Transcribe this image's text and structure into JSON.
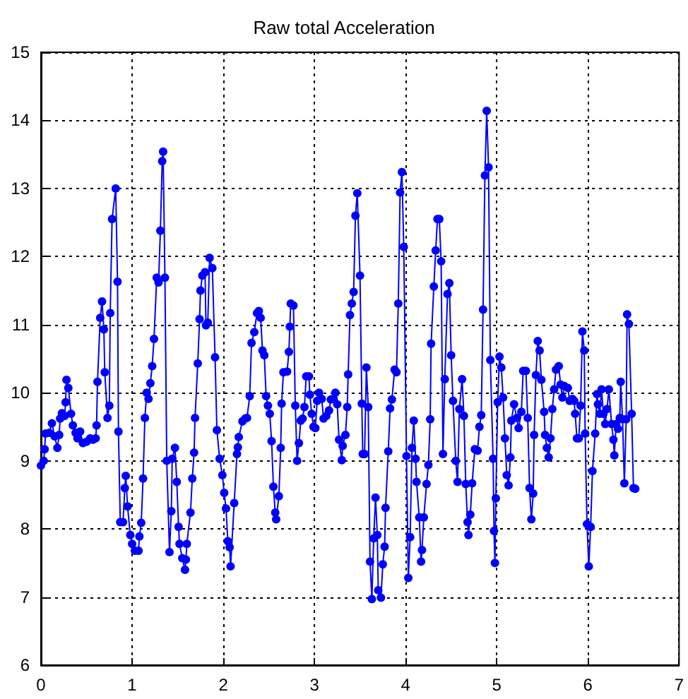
{
  "chart_data": {
    "type": "line",
    "title": "Raw total Acceleration",
    "xlim": [
      0,
      7
    ],
    "xticks": [
      0,
      1,
      2,
      3,
      4,
      5,
      6,
      7
    ],
    "ylim": [
      6,
      15
    ],
    "yticks": [
      6,
      7,
      8,
      9,
      10,
      11,
      12,
      13,
      14,
      15
    ],
    "grid": true,
    "marker": "circle",
    "line_style": "solid",
    "series": [
      {
        "color": "#0000ff",
        "x": [
          0,
          0.03,
          0.04,
          0.05,
          0.09,
          0.12,
          0.15,
          0.18,
          0.2,
          0.21,
          0.23,
          0.26,
          0.27,
          0.28,
          0.3,
          0.33,
          0.35,
          0.38,
          0.4,
          0.43,
          0.46,
          0.5,
          0.54,
          0.57,
          0.6,
          0.61,
          0.62,
          0.65,
          0.67,
          0.69,
          0.7,
          0.73,
          0.75,
          0.76,
          0.78,
          0.82,
          0.84,
          0.85,
          0.87,
          0.9,
          0.92,
          0.93,
          0.95,
          0.98,
          1.0,
          1.03,
          1.07,
          1.08,
          1.1,
          1.12,
          1.14,
          1.16,
          1.18,
          1.2,
          1.22,
          1.24,
          1.27,
          1.29,
          1.31,
          1.33,
          1.34,
          1.36,
          1.38,
          1.41,
          1.43,
          1.44,
          1.47,
          1.49,
          1.51,
          1.52,
          1.55,
          1.58,
          1.59,
          1.6,
          1.64,
          1.66,
          1.68,
          1.69,
          1.72,
          1.74,
          1.75,
          1.77,
          1.8,
          1.81,
          1.83,
          1.85,
          1.88,
          1.91,
          1.93,
          1.96,
          1.99,
          2.01,
          2.03,
          2.05,
          2.07,
          2.08,
          2.12,
          2.15,
          2.16,
          2.17,
          2.21,
          2.24,
          2.26,
          2.29,
          2.31,
          2.34,
          2.37,
          2.39,
          2.41,
          2.43,
          2.45,
          2.47,
          2.49,
          2.51,
          2.53,
          2.55,
          2.57,
          2.58,
          2.61,
          2.63,
          2.64,
          2.66,
          2.7,
          2.72,
          2.73,
          2.74,
          2.77,
          2.79,
          2.81,
          2.83,
          2.85,
          2.87,
          2.89,
          2.91,
          2.94,
          2.95,
          2.97,
          2.99,
          3.01,
          3.03,
          3.05,
          3.08,
          3.1,
          3.13,
          3.16,
          3.18,
          3.21,
          3.23,
          3.25,
          3.27,
          3.3,
          3.31,
          3.34,
          3.36,
          3.37,
          3.39,
          3.41,
          3.43,
          3.45,
          3.47,
          3.5,
          3.52,
          3.53,
          3.55,
          3.57,
          3.59,
          3.61,
          3.63,
          3.65,
          3.67,
          3.69,
          3.7,
          3.73,
          3.75,
          3.77,
          3.78,
          3.81,
          3.83,
          3.85,
          3.88,
          3.9,
          3.92,
          3.94,
          3.96,
          3.98,
          4.01,
          4.03,
          4.05,
          4.07,
          4.09,
          4.11,
          4.12,
          4.15,
          4.17,
          4.18,
          4.2,
          4.23,
          4.25,
          4.27,
          4.28,
          4.31,
          4.33,
          4.35,
          4.37,
          4.39,
          4.41,
          4.43,
          4.46,
          4.48,
          4.5,
          4.52,
          4.55,
          4.57,
          4.59,
          4.62,
          4.64,
          4.66,
          4.68,
          4.69,
          4.71,
          4.73,
          4.76,
          4.79,
          4.81,
          4.83,
          4.85,
          4.87,
          4.89,
          4.91,
          4.93,
          4.96,
          4.97,
          4.98,
          4.99,
          5.01,
          5.03,
          5.05,
          5.07,
          5.09,
          5.11,
          5.13,
          5.15,
          5.16,
          5.19,
          5.22,
          5.24,
          5.27,
          5.29,
          5.32,
          5.34,
          5.36,
          5.38,
          5.4,
          5.41,
          5.43,
          5.45,
          5.47,
          5.49,
          5.52,
          5.53,
          5.55,
          5.57,
          5.59,
          5.61,
          5.63,
          5.65,
          5.68,
          5.7,
          5.72,
          5.74,
          5.78,
          5.8,
          5.83,
          5.85,
          5.86,
          5.88,
          5.9,
          5.92,
          5.94,
          5.96,
          5.97,
          5.99,
          6.01,
          6.03,
          6.05,
          6.08,
          6.1,
          6.11,
          6.13,
          6.15,
          6.17,
          6.19,
          6.21,
          6.23,
          6.26,
          6.28,
          6.29,
          6.31,
          6.33,
          6.35,
          6.36,
          6.38,
          6.4,
          6.42,
          6.43,
          6.45,
          6.48,
          6.5,
          6.52
        ],
        "values": [
          8.93,
          9.0,
          9.17,
          9.4,
          9.41,
          9.55,
          9.36,
          9.19,
          9.38,
          9.62,
          9.7,
          9.66,
          9.86,
          10.19,
          10.07,
          9.69,
          9.52,
          9.41,
          9.33,
          9.43,
          9.26,
          9.28,
          9.33,
          9.31,
          9.33,
          9.52,
          10.16,
          11.1,
          11.34,
          10.93,
          10.3,
          9.63,
          9.81,
          11.17,
          12.55,
          13.0,
          11.63,
          9.43,
          8.1,
          8.1,
          8.6,
          8.78,
          8.33,
          7.91,
          7.78,
          7.68,
          7.68,
          7.89,
          8.09,
          8.74,
          9.63,
          10.0,
          9.91,
          10.14,
          10.39,
          10.79,
          11.69,
          11.62,
          12.38,
          13.4,
          13.54,
          11.69,
          9.0,
          7.66,
          8.26,
          9.03,
          9.19,
          8.69,
          8.03,
          7.78,
          7.57,
          7.4,
          7.55,
          7.78,
          8.24,
          8.74,
          9.12,
          9.63,
          10.43,
          11.08,
          11.5,
          11.72,
          11.77,
          10.99,
          11.03,
          11.98,
          11.83,
          10.52,
          9.45,
          9.03,
          8.79,
          8.53,
          8.3,
          7.82,
          7.73,
          7.45,
          8.38,
          9.1,
          9.2,
          9.35,
          9.58,
          9.62,
          9.63,
          9.95,
          10.73,
          10.89,
          11.17,
          11.2,
          11.1,
          10.62,
          10.55,
          9.95,
          9.81,
          9.69,
          9.29,
          8.62,
          8.24,
          8.14,
          8.48,
          9.19,
          9.84,
          10.3,
          10.31,
          10.6,
          10.97,
          11.31,
          11.28,
          9.81,
          9.0,
          9.26,
          9.59,
          9.62,
          9.79,
          10.24,
          10.24,
          9.97,
          9.69,
          9.5,
          9.48,
          9.88,
          10.0,
          9.91,
          9.62,
          9.66,
          9.74,
          9.9,
          9.91,
          10.0,
          9.83,
          9.31,
          9.01,
          9.22,
          9.38,
          9.79,
          10.27,
          11.14,
          11.31,
          11.48,
          12.6,
          12.93,
          11.72,
          9.84,
          9.1,
          9.1,
          10.37,
          9.79,
          7.52,
          6.97,
          7.86,
          8.46,
          7.91,
          7.1,
          6.99,
          7.48,
          7.74,
          8.31,
          9.14,
          9.77,
          9.9,
          10.34,
          10.3,
          11.31,
          12.94,
          13.24,
          12.14,
          9.07,
          7.28,
          7.88,
          9.19,
          9.59,
          9.03,
          8.69,
          8.17,
          7.52,
          7.69,
          8.17,
          8.66,
          8.94,
          9.61,
          10.72,
          11.56,
          12.09,
          12.55,
          12.55,
          11.93,
          9.1,
          10.2,
          11.45,
          11.61,
          10.55,
          9.88,
          9.0,
          8.69,
          9.76,
          10.2,
          9.66,
          8.66,
          8.1,
          7.91,
          8.21,
          8.67,
          9.17,
          9.15,
          9.5,
          9.67,
          11.22,
          13.19,
          14.14,
          13.31,
          10.48,
          9.03,
          7.97,
          7.5,
          8.45,
          9.86,
          10.53,
          10.37,
          9.93,
          9.33,
          8.79,
          8.64,
          9.05,
          9.59,
          9.83,
          9.63,
          9.48,
          9.72,
          10.32,
          10.32,
          9.63,
          8.6,
          8.14,
          8.52,
          9.38,
          10.26,
          10.76,
          10.62,
          10.19,
          9.72,
          9.38,
          9.19,
          9.05,
          9.33,
          9.76,
          10.05,
          10.34,
          10.39,
          10.12,
          9.93,
          10.1,
          10.07,
          9.88,
          9.91,
          9.88,
          9.69,
          9.33,
          9.33,
          9.81,
          10.9,
          10.62,
          9.4,
          8.07,
          7.45,
          8.03,
          8.85,
          9.4,
          9.98,
          9.83,
          9.69,
          10.05,
          9.69,
          9.54,
          9.76,
          10.05,
          9.54,
          9.31,
          9.08,
          9.54,
          9.47,
          9.63,
          10.16,
          9.61,
          8.67,
          9.61,
          11.15,
          11.01,
          9.69,
          8.6,
          8.59
        ]
      }
    ]
  }
}
